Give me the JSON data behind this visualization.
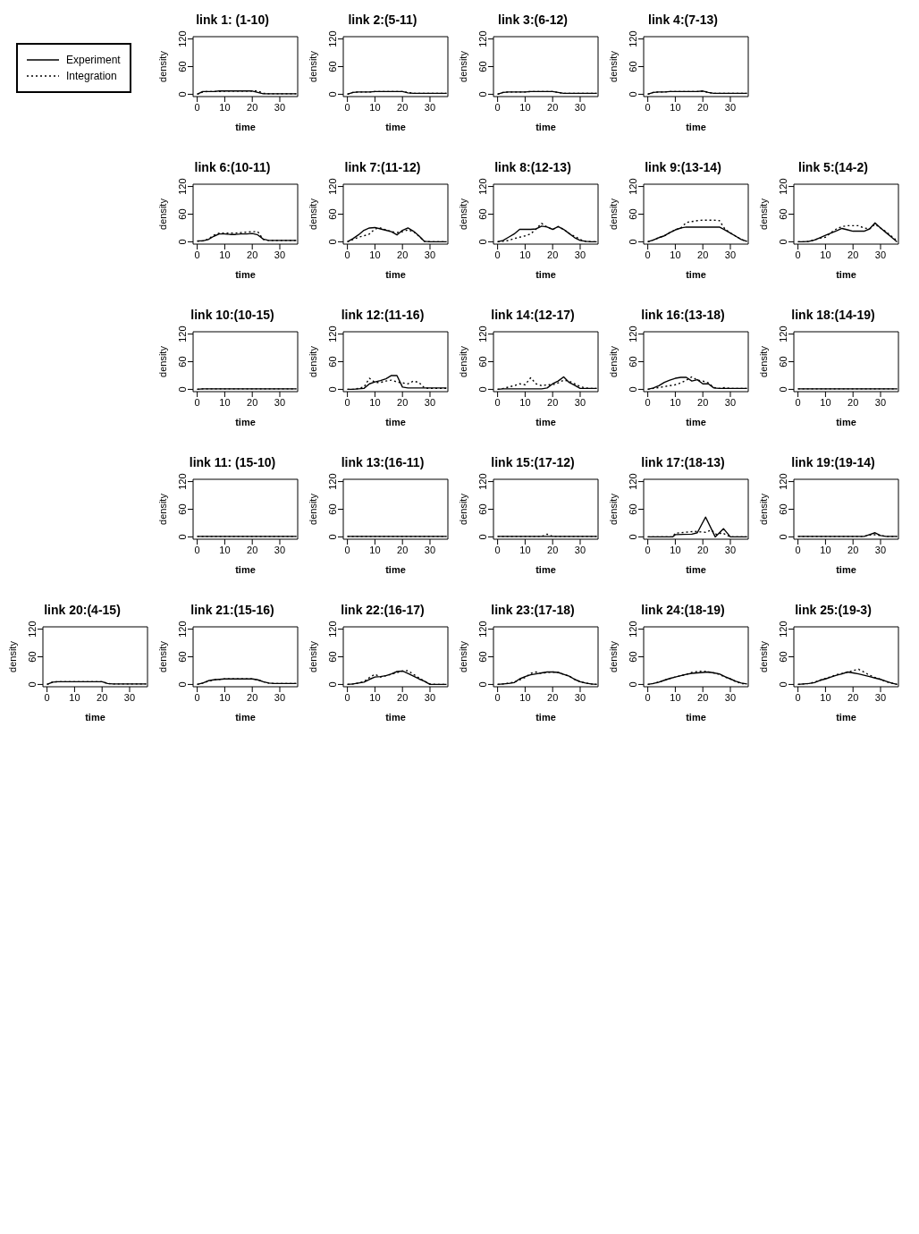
{
  "chart_data": [
    {
      "type": "line",
      "title": "link 1: (1-10)",
      "xlabel": "time",
      "ylabel": "density",
      "xlim": [
        -1.5,
        36.5
      ],
      "ylim": [
        -5,
        125
      ],
      "xticks": [
        0,
        10,
        20,
        30
      ],
      "yticks": [
        0,
        60,
        120
      ],
      "legend": "left",
      "x": [
        0,
        2,
        4,
        6,
        8,
        10,
        12,
        14,
        16,
        18,
        20,
        22,
        24,
        26,
        28,
        30,
        32,
        34,
        36
      ],
      "series": [
        {
          "name": "Experiment",
          "color": "#000000",
          "line_style": "solid",
          "values": [
            0,
            6,
            6,
            6,
            7,
            7,
            7,
            7,
            7,
            7,
            7,
            4,
            1,
            1,
            1,
            1,
            1,
            1,
            1
          ]
        },
        {
          "name": "Integration",
          "color": "#000000",
          "line_style": "dotted",
          "values": [
            0,
            5,
            6,
            6,
            6,
            7,
            7,
            7,
            7,
            7,
            7,
            7,
            2,
            1,
            1,
            1,
            1,
            1,
            1
          ]
        }
      ]
    },
    {
      "type": "line",
      "title": "link 2:(5-11)",
      "xlabel": "time",
      "ylabel": "density",
      "xlim": [
        -1.5,
        36.5
      ],
      "ylim": [
        -5,
        125
      ],
      "xticks": [
        0,
        10,
        20,
        30
      ],
      "yticks": [
        0,
        60,
        120
      ],
      "x": [
        0,
        2,
        4,
        6,
        8,
        10,
        12,
        14,
        16,
        18,
        20,
        22,
        24,
        26,
        28,
        30,
        32,
        34,
        36
      ],
      "series": [
        {
          "color": "#000000",
          "line_style": "solid",
          "values": [
            0,
            4,
            5,
            5,
            5,
            6,
            6,
            6,
            6,
            6,
            6,
            3,
            2,
            2,
            2,
            2,
            2,
            2,
            2
          ]
        },
        {
          "color": "#000000",
          "line_style": "dotted",
          "values": [
            0,
            4,
            5,
            5,
            5,
            6,
            6,
            6,
            6,
            6,
            6,
            4,
            2,
            2,
            2,
            2,
            2,
            2,
            2
          ]
        }
      ]
    },
    {
      "type": "line",
      "title": "link 3:(6-12)",
      "xlabel": "time",
      "ylabel": "density",
      "xlim": [
        -1.5,
        36.5
      ],
      "ylim": [
        -5,
        125
      ],
      "xticks": [
        0,
        10,
        20,
        30
      ],
      "yticks": [
        0,
        60,
        120
      ],
      "x": [
        0,
        2,
        4,
        6,
        8,
        10,
        12,
        14,
        16,
        18,
        20,
        22,
        24,
        26,
        28,
        30,
        32,
        34,
        36
      ],
      "series": [
        {
          "color": "#000000",
          "line_style": "solid",
          "values": [
            0,
            4,
            5,
            5,
            5,
            5,
            6,
            6,
            6,
            6,
            6,
            4,
            2,
            2,
            2,
            2,
            2,
            2,
            2
          ]
        },
        {
          "color": "#000000",
          "line_style": "dotted",
          "values": [
            0,
            4,
            5,
            5,
            5,
            5,
            6,
            6,
            6,
            6,
            6,
            4,
            2,
            2,
            2,
            2,
            2,
            2,
            2
          ]
        }
      ]
    },
    {
      "type": "line",
      "title": "link 4:(7-13)",
      "xlabel": "time",
      "ylabel": "density",
      "xlim": [
        -1.5,
        36.5
      ],
      "ylim": [
        -5,
        125
      ],
      "xticks": [
        0,
        10,
        20,
        30
      ],
      "yticks": [
        0,
        60,
        120
      ],
      "x": [
        0,
        2,
        4,
        6,
        8,
        10,
        12,
        14,
        16,
        18,
        20,
        22,
        24,
        26,
        28,
        30,
        32,
        34,
        36
      ],
      "series": [
        {
          "color": "#000000",
          "line_style": "solid",
          "values": [
            0,
            4,
            5,
            5,
            6,
            6,
            6,
            6,
            6,
            6,
            7,
            4,
            2,
            2,
            2,
            2,
            2,
            2,
            2
          ]
        },
        {
          "color": "#000000",
          "line_style": "dotted",
          "values": [
            0,
            4,
            5,
            5,
            6,
            6,
            6,
            6,
            6,
            6,
            7,
            4,
            2,
            2,
            2,
            2,
            2,
            2,
            2
          ]
        }
      ]
    },
    {
      "type": "line",
      "title": "link 6:(10-11)",
      "xlabel": "time",
      "ylabel": "density",
      "xlim": [
        -1.5,
        36.5
      ],
      "ylim": [
        -5,
        125
      ],
      "xticks": [
        0,
        10,
        20,
        30
      ],
      "yticks": [
        0,
        60,
        120
      ],
      "x": [
        0,
        2,
        4,
        6,
        8,
        10,
        12,
        14,
        16,
        18,
        20,
        22,
        24,
        26,
        28,
        30,
        32,
        34,
        36
      ],
      "series": [
        {
          "color": "#000000",
          "line_style": "solid",
          "values": [
            2,
            2,
            5,
            12,
            17,
            17,
            16,
            16,
            17,
            17,
            18,
            15,
            6,
            3,
            3,
            3,
            3,
            3,
            3
          ]
        },
        {
          "color": "#000000",
          "line_style": "dotted",
          "values": [
            1,
            2,
            6,
            14,
            19,
            19,
            19,
            19,
            20,
            21,
            22,
            22,
            5,
            3,
            3,
            3,
            3,
            3,
            3
          ]
        }
      ]
    },
    {
      "type": "line",
      "title": "link 7:(11-12)",
      "xlabel": "time",
      "ylabel": "density",
      "xlim": [
        -1.5,
        36.5
      ],
      "ylim": [
        -5,
        125
      ],
      "xticks": [
        0,
        10,
        20,
        30
      ],
      "yticks": [
        0,
        60,
        120
      ],
      "x": [
        0,
        2,
        4,
        6,
        8,
        10,
        12,
        14,
        16,
        18,
        20,
        22,
        24,
        26,
        28,
        30,
        32,
        34,
        36
      ],
      "series": [
        {
          "color": "#000000",
          "line_style": "solid",
          "values": [
            0,
            7,
            15,
            25,
            30,
            31,
            28,
            25,
            22,
            15,
            25,
            30,
            23,
            13,
            1,
            0,
            0,
            0,
            0
          ]
        },
        {
          "color": "#000000",
          "line_style": "dotted",
          "values": [
            0,
            5,
            10,
            13,
            17,
            28,
            30,
            26,
            22,
            20,
            22,
            26,
            22,
            12,
            1,
            0,
            0,
            0,
            0
          ]
        }
      ]
    },
    {
      "type": "line",
      "title": "link 8:(12-13)",
      "xlabel": "time",
      "ylabel": "density",
      "xlim": [
        -1.5,
        36.5
      ],
      "ylim": [
        -5,
        125
      ],
      "xticks": [
        0,
        10,
        20,
        30
      ],
      "yticks": [
        0,
        60,
        120
      ],
      "x": [
        0,
        2,
        4,
        6,
        8,
        10,
        12,
        14,
        16,
        18,
        20,
        22,
        24,
        26,
        28,
        30,
        32,
        34,
        36
      ],
      "series": [
        {
          "color": "#000000",
          "line_style": "solid",
          "values": [
            0,
            3,
            10,
            17,
            27,
            27,
            27,
            28,
            34,
            32,
            27,
            33,
            27,
            18,
            9,
            3,
            1,
            0,
            0
          ]
        },
        {
          "color": "#000000",
          "line_style": "dotted",
          "values": [
            0,
            1,
            3,
            7,
            10,
            13,
            17,
            28,
            40,
            32,
            27,
            33,
            27,
            18,
            12,
            5,
            1,
            0,
            0
          ]
        }
      ]
    },
    {
      "type": "line",
      "title": "link 9:(13-14)",
      "xlabel": "time",
      "ylabel": "density",
      "xlim": [
        -1.5,
        36.5
      ],
      "ylim": [
        -5,
        125
      ],
      "xticks": [
        0,
        10,
        20,
        30
      ],
      "yticks": [
        0,
        60,
        120
      ],
      "x": [
        0,
        2,
        4,
        6,
        8,
        10,
        12,
        14,
        16,
        18,
        20,
        22,
        24,
        26,
        28,
        30,
        32,
        34,
        36
      ],
      "series": [
        {
          "color": "#000000",
          "line_style": "solid",
          "values": [
            0,
            4,
            9,
            13,
            20,
            26,
            30,
            32,
            32,
            32,
            32,
            32,
            32,
            32,
            26,
            19,
            12,
            5,
            1
          ]
        },
        {
          "color": "#000000",
          "line_style": "dotted",
          "values": [
            0,
            4,
            9,
            13,
            20,
            26,
            30,
            42,
            44,
            46,
            47,
            47,
            47,
            46,
            28,
            19,
            12,
            5,
            1
          ]
        }
      ]
    },
    {
      "type": "line",
      "title": "link 5:(14-2)",
      "xlabel": "time",
      "ylabel": "density",
      "xlim": [
        -1.5,
        36.5
      ],
      "ylim": [
        -5,
        125
      ],
      "xticks": [
        0,
        10,
        20,
        30
      ],
      "yticks": [
        0,
        60,
        120
      ],
      "x": [
        0,
        2,
        4,
        6,
        8,
        10,
        12,
        14,
        16,
        18,
        20,
        22,
        24,
        26,
        28,
        30,
        32,
        34,
        36
      ],
      "series": [
        {
          "color": "#000000",
          "line_style": "solid",
          "values": [
            0,
            0,
            1,
            4,
            9,
            14,
            19,
            24,
            29,
            26,
            23,
            23,
            23,
            28,
            41,
            30,
            20,
            10,
            0
          ]
        },
        {
          "color": "#000000",
          "line_style": "dotted",
          "values": [
            0,
            0,
            1,
            4,
            8,
            10,
            20,
            28,
            33,
            35,
            35,
            35,
            30,
            28,
            38,
            30,
            22,
            12,
            2
          ]
        }
      ]
    },
    {
      "type": "line",
      "title": "link 10:(10-15)",
      "xlabel": "time",
      "ylabel": "density",
      "xlim": [
        -1.5,
        36.5
      ],
      "ylim": [
        -5,
        125
      ],
      "xticks": [
        0,
        10,
        20,
        30
      ],
      "yticks": [
        0,
        60,
        120
      ],
      "x": [
        0,
        2,
        4,
        6,
        8,
        10,
        12,
        14,
        16,
        18,
        20,
        22,
        24,
        26,
        28,
        30,
        32,
        34,
        36
      ],
      "series": [
        {
          "color": "#000000",
          "line_style": "solid",
          "values": [
            0,
            1,
            1,
            1,
            1,
            1,
            1,
            1,
            1,
            1,
            1,
            1,
            1,
            1,
            1,
            1,
            1,
            1,
            1
          ]
        },
        {
          "color": "#000000",
          "line_style": "dotted",
          "values": [
            0,
            1,
            1,
            1,
            1,
            1,
            1,
            1,
            1,
            1,
            1,
            1,
            1,
            1,
            1,
            1,
            1,
            1,
            1
          ]
        }
      ]
    },
    {
      "type": "line",
      "title": "link 12:(11-16)",
      "xlabel": "time",
      "ylabel": "density",
      "xlim": [
        -1.5,
        36.5
      ],
      "ylim": [
        -5,
        125
      ],
      "xticks": [
        0,
        10,
        20,
        30
      ],
      "yticks": [
        0,
        60,
        120
      ],
      "x": [
        0,
        2,
        4,
        6,
        8,
        10,
        12,
        14,
        16,
        18,
        20,
        22,
        24,
        26,
        28,
        30,
        32,
        34,
        36
      ],
      "series": [
        {
          "color": "#000000",
          "line_style": "solid",
          "values": [
            0,
            0,
            1,
            2,
            12,
            16,
            19,
            23,
            30,
            30,
            5,
            3,
            3,
            3,
            3,
            3,
            3,
            3,
            3
          ]
        },
        {
          "color": "#000000",
          "line_style": "dotted",
          "values": [
            0,
            0,
            2,
            5,
            24,
            15,
            15,
            18,
            20,
            16,
            14,
            12,
            18,
            15,
            3,
            2,
            2,
            2,
            2
          ]
        }
      ]
    },
    {
      "type": "line",
      "title": "link 14:(12-17)",
      "xlabel": "time",
      "ylabel": "density",
      "xlim": [
        -1.5,
        36.5
      ],
      "ylim": [
        -5,
        125
      ],
      "xticks": [
        0,
        10,
        20,
        30
      ],
      "yticks": [
        0,
        60,
        120
      ],
      "x": [
        0,
        2,
        4,
        6,
        8,
        10,
        12,
        14,
        16,
        18,
        20,
        22,
        24,
        26,
        28,
        30,
        32,
        34,
        36
      ],
      "series": [
        {
          "color": "#000000",
          "line_style": "solid",
          "values": [
            0,
            1,
            1,
            1,
            1,
            1,
            1,
            1,
            1,
            3,
            12,
            18,
            27,
            15,
            9,
            2,
            2,
            2,
            2
          ]
        },
        {
          "color": "#000000",
          "line_style": "dotted",
          "values": [
            0,
            2,
            5,
            8,
            12,
            10,
            25,
            12,
            8,
            10,
            10,
            14,
            20,
            18,
            12,
            6,
            3,
            2,
            2
          ]
        }
      ]
    },
    {
      "type": "line",
      "title": "link 16:(13-18)",
      "xlabel": "time",
      "ylabel": "density",
      "xlim": [
        -1.5,
        36.5
      ],
      "ylim": [
        -5,
        125
      ],
      "xticks": [
        0,
        10,
        20,
        30
      ],
      "yticks": [
        0,
        60,
        120
      ],
      "x": [
        0,
        2,
        4,
        6,
        8,
        10,
        12,
        14,
        16,
        18,
        20,
        22,
        24,
        26,
        28,
        30,
        32,
        34,
        36
      ],
      "series": [
        {
          "color": "#000000",
          "line_style": "solid",
          "values": [
            0,
            3,
            8,
            15,
            20,
            24,
            26,
            26,
            18,
            21,
            12,
            12,
            3,
            2,
            2,
            2,
            2,
            2,
            2
          ]
        },
        {
          "color": "#000000",
          "line_style": "dotted",
          "values": [
            0,
            2,
            4,
            6,
            8,
            10,
            14,
            20,
            27,
            20,
            18,
            14,
            4,
            2,
            4,
            2,
            2,
            2,
            2
          ]
        }
      ]
    },
    {
      "type": "line",
      "title": "link 18:(14-19)",
      "xlabel": "time",
      "ylabel": "density",
      "xlim": [
        -1.5,
        36.5
      ],
      "ylim": [
        -5,
        125
      ],
      "xticks": [
        0,
        10,
        20,
        30
      ],
      "yticks": [
        0,
        60,
        120
      ],
      "x": [
        0,
        2,
        4,
        6,
        8,
        10,
        12,
        14,
        16,
        18,
        20,
        22,
        24,
        26,
        28,
        30,
        32,
        34,
        36
      ],
      "series": [
        {
          "color": "#000000",
          "line_style": "solid",
          "values": [
            1,
            1,
            1,
            1,
            1,
            1,
            1,
            1,
            1,
            1,
            1,
            1,
            1,
            1,
            1,
            1,
            1,
            1,
            1
          ]
        },
        {
          "color": "#000000",
          "line_style": "dotted",
          "values": [
            1,
            1,
            1,
            1,
            1,
            1,
            1,
            1,
            1,
            1,
            1,
            1,
            1,
            1,
            1,
            1,
            1,
            1,
            1
          ]
        }
      ]
    },
    {
      "type": "line",
      "title": "link 11: (15-10)",
      "xlabel": "time",
      "ylabel": "density",
      "xlim": [
        -1.5,
        36.5
      ],
      "ylim": [
        -5,
        125
      ],
      "xticks": [
        0,
        10,
        20,
        30
      ],
      "yticks": [
        0,
        60,
        120
      ],
      "x": [
        0,
        2,
        4,
        6,
        8,
        10,
        12,
        14,
        16,
        18,
        20,
        22,
        24,
        26,
        28,
        30,
        32,
        34,
        36
      ],
      "series": [
        {
          "color": "#000000",
          "line_style": "solid",
          "values": [
            1,
            1,
            1,
            1,
            1,
            1,
            1,
            1,
            1,
            1,
            1,
            1,
            1,
            1,
            1,
            1,
            1,
            1,
            1
          ]
        },
        {
          "color": "#000000",
          "line_style": "dotted",
          "values": [
            1,
            1,
            1,
            1,
            1,
            1,
            1,
            1,
            1,
            1,
            1,
            1,
            1,
            1,
            1,
            1,
            1,
            1,
            1
          ]
        }
      ]
    },
    {
      "type": "line",
      "title": "link 13:(16-11)",
      "xlabel": "time",
      "ylabel": "density",
      "xlim": [
        -1.5,
        36.5
      ],
      "ylim": [
        -5,
        125
      ],
      "xticks": [
        0,
        10,
        20,
        30
      ],
      "yticks": [
        0,
        60,
        120
      ],
      "x": [
        0,
        2,
        4,
        6,
        8,
        10,
        12,
        14,
        16,
        18,
        20,
        22,
        24,
        26,
        28,
        30,
        32,
        34,
        36
      ],
      "series": [
        {
          "color": "#000000",
          "line_style": "solid",
          "values": [
            1,
            1,
            1,
            1,
            1,
            1,
            1,
            1,
            1,
            1,
            1,
            1,
            1,
            1,
            1,
            1,
            1,
            1,
            1
          ]
        },
        {
          "color": "#000000",
          "line_style": "dotted",
          "values": [
            1,
            1,
            1,
            1,
            1,
            1,
            1,
            1,
            1,
            1,
            1,
            1,
            1,
            1,
            1,
            1,
            1,
            1,
            1
          ]
        }
      ]
    },
    {
      "type": "line",
      "title": "link 15:(17-12)",
      "xlabel": "time",
      "ylabel": "density",
      "xlim": [
        -1.5,
        36.5
      ],
      "ylim": [
        -5,
        125
      ],
      "xticks": [
        0,
        10,
        20,
        30
      ],
      "yticks": [
        0,
        60,
        120
      ],
      "x": [
        0,
        2,
        4,
        6,
        8,
        10,
        12,
        14,
        16,
        18,
        20,
        22,
        24,
        26,
        28,
        30,
        32,
        34,
        36
      ],
      "series": [
        {
          "color": "#000000",
          "line_style": "solid",
          "values": [
            1,
            1,
            1,
            1,
            1,
            1,
            1,
            1,
            1,
            1,
            1,
            1,
            1,
            1,
            1,
            1,
            1,
            1,
            1
          ]
        },
        {
          "color": "#000000",
          "line_style": "dotted",
          "values": [
            1,
            1,
            1,
            1,
            1,
            1,
            1,
            1,
            1,
            6,
            1,
            1,
            1,
            1,
            1,
            1,
            1,
            1,
            1
          ]
        }
      ]
    },
    {
      "type": "line",
      "title": "link 17:(18-13)",
      "xlabel": "time",
      "ylabel": "density",
      "xlim": [
        -1.5,
        36.5
      ],
      "ylim": [
        -5,
        125
      ],
      "xticks": [
        0,
        10,
        20,
        30
      ],
      "yticks": [
        0,
        60,
        120
      ],
      "series": [
        {
          "color": "#000000",
          "line_style": "solid",
          "x": [
            0,
            9,
            10,
            16,
            18,
            21,
            24.5,
            27.5,
            30,
            36
          ],
          "values": [
            0,
            0,
            5,
            6,
            9,
            43,
            0,
            18,
            0,
            0
          ]
        },
        {
          "color": "#000000",
          "line_style": "dotted",
          "x": [
            0,
            9,
            10,
            17,
            21,
            23,
            25,
            27,
            30,
            36
          ],
          "values": [
            0,
            0,
            8,
            12,
            10,
            15,
            5,
            9,
            0,
            0
          ]
        }
      ]
    },
    {
      "type": "line",
      "title": "link 19:(19-14)",
      "xlabel": "time",
      "ylabel": "density",
      "xlim": [
        -1.5,
        36.5
      ],
      "ylim": [
        -5,
        125
      ],
      "xticks": [
        0,
        10,
        20,
        30
      ],
      "yticks": [
        0,
        60,
        120
      ],
      "x": [
        0,
        2,
        4,
        6,
        8,
        10,
        12,
        14,
        16,
        18,
        20,
        22,
        24,
        26,
        28,
        30,
        32,
        34,
        36
      ],
      "series": [
        {
          "color": "#000000",
          "line_style": "solid",
          "values": [
            1,
            1,
            1,
            1,
            1,
            1,
            1,
            1,
            1,
            1,
            1,
            1,
            1,
            5,
            9,
            3,
            1,
            1,
            1
          ]
        },
        {
          "color": "#000000",
          "line_style": "dotted",
          "values": [
            1,
            1,
            1,
            1,
            1,
            1,
            1,
            1,
            1,
            1,
            1,
            1,
            1,
            4,
            5,
            3,
            1,
            1,
            1
          ]
        }
      ]
    },
    {
      "type": "line",
      "title": "link 20:(4-15)",
      "xlabel": "time",
      "ylabel": "density",
      "xlim": [
        -1.5,
        36.5
      ],
      "ylim": [
        -5,
        125
      ],
      "xticks": [
        0,
        10,
        20,
        30
      ],
      "yticks": [
        0,
        60,
        120
      ],
      "x": [
        0,
        2,
        4,
        6,
        8,
        10,
        12,
        14,
        16,
        18,
        20,
        22,
        24,
        26,
        28,
        30,
        32,
        34,
        36
      ],
      "series": [
        {
          "color": "#000000",
          "line_style": "solid",
          "values": [
            0,
            5,
            6,
            6,
            6,
            6,
            6,
            6,
            6,
            6,
            6,
            2,
            1,
            1,
            1,
            1,
            1,
            1,
            1
          ]
        },
        {
          "color": "#000000",
          "line_style": "dotted",
          "values": [
            0,
            5,
            6,
            6,
            6,
            6,
            6,
            6,
            6,
            6,
            6,
            2,
            1,
            1,
            1,
            1,
            1,
            1,
            1
          ]
        }
      ]
    },
    {
      "type": "line",
      "title": "link 21:(15-16)",
      "xlabel": "time",
      "ylabel": "density",
      "xlim": [
        -1.5,
        36.5
      ],
      "ylim": [
        -5,
        125
      ],
      "xticks": [
        0,
        10,
        20,
        30
      ],
      "yticks": [
        0,
        60,
        120
      ],
      "x": [
        0,
        2,
        4,
        6,
        8,
        10,
        12,
        14,
        16,
        18,
        20,
        22,
        24,
        26,
        28,
        30,
        32,
        34,
        36
      ],
      "series": [
        {
          "color": "#000000",
          "line_style": "solid",
          "values": [
            0,
            3,
            8,
            10,
            11,
            12,
            12,
            12,
            12,
            12,
            12,
            10,
            6,
            3,
            2,
            2,
            2,
            2,
            2
          ]
        },
        {
          "color": "#000000",
          "line_style": "dotted",
          "values": [
            0,
            3,
            7,
            10,
            11,
            12,
            12,
            12,
            12,
            12,
            12,
            10,
            6,
            3,
            2,
            2,
            2,
            2,
            2
          ]
        }
      ]
    },
    {
      "type": "line",
      "title": "link 22:(16-17)",
      "xlabel": "time",
      "ylabel": "density",
      "xlim": [
        -1.5,
        36.5
      ],
      "ylim": [
        -5,
        125
      ],
      "xticks": [
        0,
        10,
        20,
        30
      ],
      "yticks": [
        0,
        60,
        120
      ],
      "x": [
        0,
        2,
        4,
        6,
        8,
        10,
        12,
        14,
        16,
        18,
        20,
        22,
        24,
        26,
        28,
        30,
        32,
        34,
        36
      ],
      "series": [
        {
          "color": "#000000",
          "line_style": "solid",
          "values": [
            0,
            1,
            3,
            5,
            11,
            16,
            17,
            19,
            23,
            28,
            29,
            24,
            18,
            12,
            7,
            0,
            0,
            0,
            0
          ]
        },
        {
          "color": "#000000",
          "line_style": "dotted",
          "values": [
            0,
            1,
            3,
            6,
            15,
            22,
            16,
            19,
            22,
            26,
            29,
            30,
            22,
            14,
            7,
            1,
            0,
            0,
            0
          ]
        }
      ]
    },
    {
      "type": "line",
      "title": "link 23:(17-18)",
      "xlabel": "time",
      "ylabel": "density",
      "xlim": [
        -1.5,
        36.5
      ],
      "ylim": [
        -5,
        125
      ],
      "xticks": [
        0,
        10,
        20,
        30
      ],
      "yticks": [
        0,
        60,
        120
      ],
      "x": [
        0,
        2,
        4,
        6,
        8,
        10,
        12,
        14,
        16,
        18,
        20,
        22,
        24,
        26,
        28,
        30,
        32,
        34,
        36
      ],
      "series": [
        {
          "color": "#000000",
          "line_style": "solid",
          "values": [
            0,
            1,
            2,
            4,
            12,
            17,
            21,
            23,
            25,
            27,
            27,
            26,
            22,
            18,
            11,
            6,
            3,
            1,
            0
          ]
        },
        {
          "color": "#000000",
          "line_style": "dotted",
          "values": [
            0,
            1,
            3,
            5,
            10,
            15,
            24,
            27,
            24,
            26,
            27,
            26,
            22,
            18,
            11,
            6,
            3,
            1,
            0
          ]
        }
      ]
    },
    {
      "type": "line",
      "title": "link 24:(18-19)",
      "xlabel": "time",
      "ylabel": "density",
      "xlim": [
        -1.5,
        36.5
      ],
      "ylim": [
        -5,
        125
      ],
      "xticks": [
        0,
        10,
        20,
        30
      ],
      "yticks": [
        0,
        60,
        120
      ],
      "x": [
        0,
        2,
        4,
        6,
        8,
        10,
        12,
        14,
        16,
        18,
        20,
        22,
        24,
        26,
        28,
        30,
        32,
        34,
        36
      ],
      "series": [
        {
          "color": "#000000",
          "line_style": "solid",
          "values": [
            0,
            2,
            5,
            9,
            13,
            16,
            19,
            22,
            24,
            25,
            26,
            27,
            25,
            23,
            17,
            12,
            7,
            3,
            1
          ]
        },
        {
          "color": "#000000",
          "line_style": "dotted",
          "values": [
            0,
            2,
            5,
            9,
            13,
            16,
            19,
            22,
            26,
            28,
            29,
            27,
            25,
            22,
            16,
            12,
            6,
            2,
            1
          ]
        }
      ]
    },
    {
      "type": "line",
      "title": "link 25:(19-3)",
      "xlabel": "time",
      "ylabel": "density",
      "xlim": [
        -1.5,
        36.5
      ],
      "ylim": [
        -5,
        125
      ],
      "xticks": [
        0,
        10,
        20,
        30
      ],
      "yticks": [
        0,
        60,
        120
      ],
      "x": [
        0,
        2,
        4,
        6,
        8,
        10,
        12,
        14,
        16,
        18,
        20,
        22,
        24,
        26,
        28,
        30,
        32,
        34,
        36
      ],
      "series": [
        {
          "color": "#000000",
          "line_style": "solid",
          "values": [
            0,
            1,
            2,
            4,
            9,
            12,
            16,
            20,
            23,
            27,
            25,
            23,
            20,
            17,
            14,
            11,
            7,
            3,
            0
          ]
        },
        {
          "color": "#000000",
          "line_style": "dotted",
          "values": [
            0,
            1,
            2,
            5,
            9,
            13,
            17,
            21,
            24,
            26,
            30,
            33,
            27,
            20,
            15,
            11,
            6,
            3,
            0
          ]
        }
      ]
    }
  ]
}
